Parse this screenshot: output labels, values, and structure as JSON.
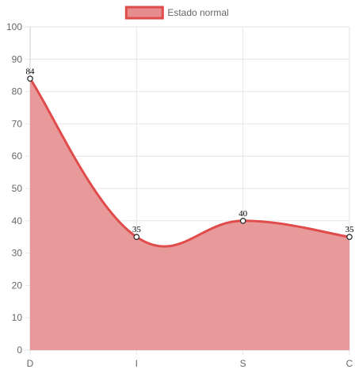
{
  "chart_data": {
    "type": "area",
    "categories": [
      "D",
      "I",
      "S",
      "C"
    ],
    "series": [
      {
        "name": "Estado normal",
        "values": [
          84,
          35,
          40,
          35
        ]
      }
    ],
    "ylim": [
      0,
      100
    ],
    "yticks": [
      0,
      10,
      20,
      30,
      40,
      50,
      60,
      70,
      80,
      90,
      100
    ],
    "grid": true,
    "legend": "top-center",
    "colors": {
      "line": "#e04b4b",
      "fill": "#e58c8c",
      "point_fill": "#ffffff",
      "grid": "#e6e6e6"
    }
  }
}
